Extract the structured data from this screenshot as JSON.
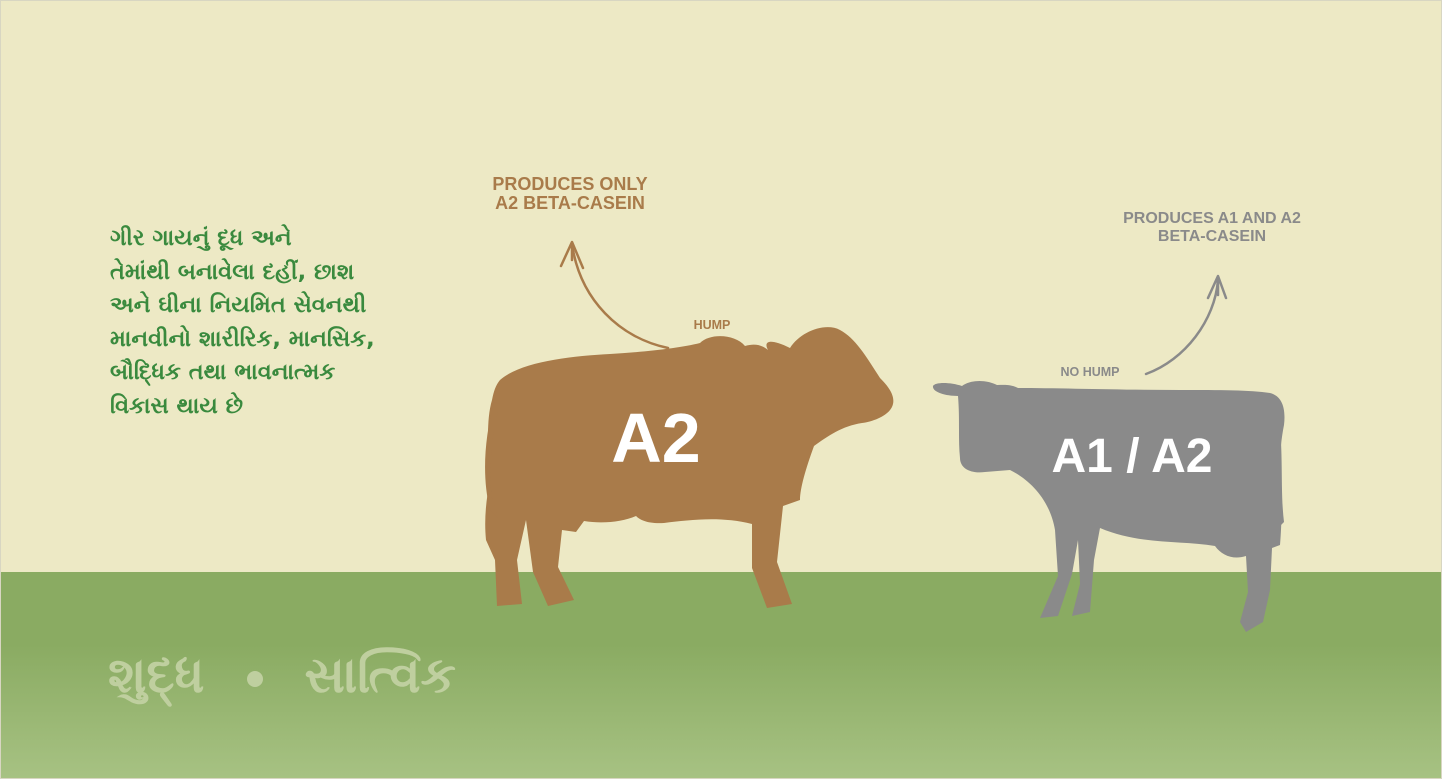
{
  "colors": {
    "sky": "#ede9c5",
    "ground_top": "#8aab62",
    "ground_bottom": "#a7c283",
    "a2_cow": "#a97b4a",
    "a1a2_cow": "#8a8a8a",
    "text_green": "#3a8a3e",
    "brand_text": "#bfcf9f"
  },
  "description_lines": [
    "ગીર ગાયનું દૂધ અને",
    "તેમાંથી બનાવેલા દહીં, છાશ",
    "અને ઘીના નિયમિત સેવનથી",
    "માનવીનો શારીરિક, માનસિક,",
    "બૌદ્ધિક તથા ભાવનાત્મક",
    "વિકાસ થાય છે"
  ],
  "a2_cow": {
    "label": "A2",
    "callout_lines": [
      "PRODUCES ONLY",
      "A2 BETA-CASEIN"
    ],
    "feature_label": "HUMP"
  },
  "a1a2_cow": {
    "label": "A1 / A2",
    "callout_lines": [
      "PRODUCES A1 AND A2",
      "BETA-CASEIN"
    ],
    "feature_label": "NO HUMP"
  },
  "brand": {
    "word_left": "શુદ્ધ",
    "word_right": "સાત્વિક"
  }
}
